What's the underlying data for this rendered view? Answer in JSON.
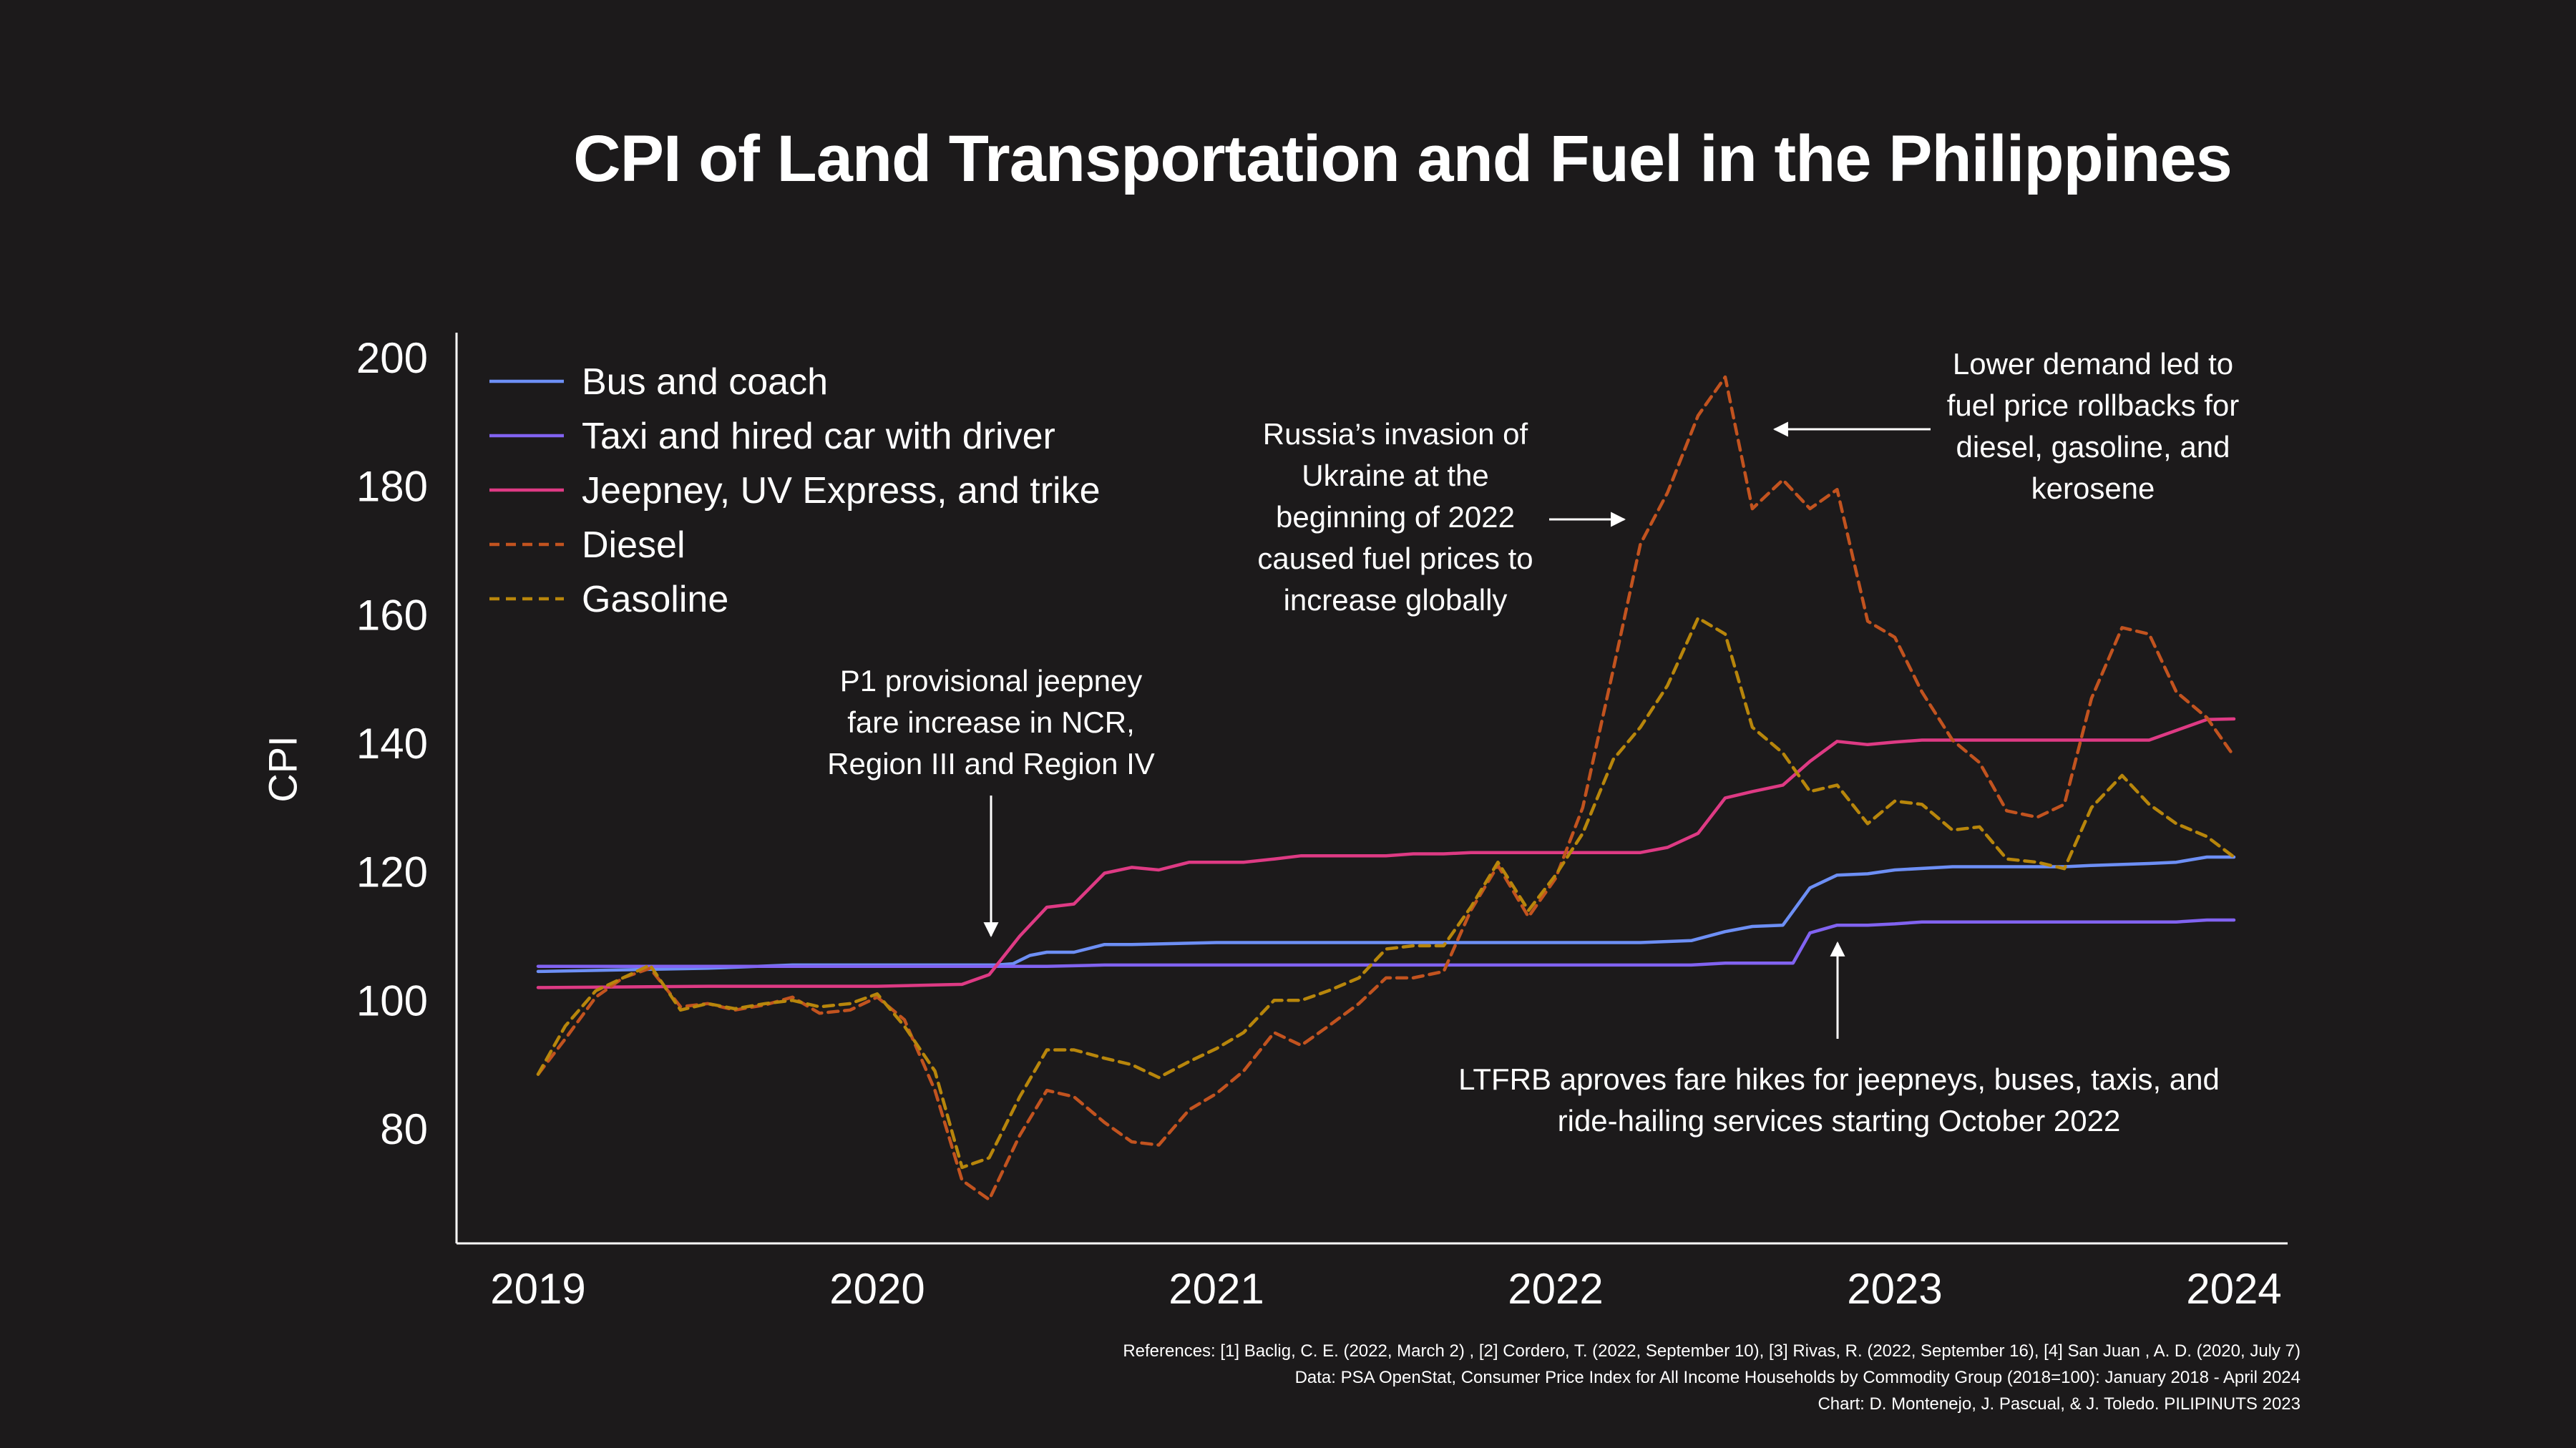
{
  "chart_data": {
    "type": "line",
    "title": "CPI of Land Transportation and Fuel in the Philippines",
    "ylabel": "CPI",
    "xlabel": "",
    "xlim": [
      2019,
      2024
    ],
    "ylim": [
      62,
      204
    ],
    "x_ticks": [
      "2019",
      "2020",
      "2021",
      "2022",
      "2023",
      "2024"
    ],
    "y_ticks": [
      "80",
      "100",
      "120",
      "140",
      "160",
      "180",
      "200"
    ],
    "legend_position": "top-left",
    "series": [
      {
        "name": "Bus and coach",
        "color": "#6d8ff5",
        "dash": false,
        "points": [
          [
            2019.0,
            104.5
          ],
          [
            2019.5,
            105
          ],
          [
            2019.75,
            105.5
          ],
          [
            2020.0,
            105.5
          ],
          [
            2020.35,
            105.5
          ],
          [
            2020.4,
            105.7
          ],
          [
            2020.45,
            107
          ],
          [
            2020.5,
            107.5
          ],
          [
            2020.58,
            107.5
          ],
          [
            2020.67,
            108.7
          ],
          [
            2020.75,
            108.7
          ],
          [
            2021.0,
            109
          ],
          [
            2021.5,
            109
          ],
          [
            2022.0,
            109
          ],
          [
            2022.25,
            109
          ],
          [
            2022.4,
            109.3
          ],
          [
            2022.5,
            110.7
          ],
          [
            2022.58,
            111.5
          ],
          [
            2022.67,
            111.7
          ],
          [
            2022.75,
            117.5
          ],
          [
            2022.83,
            119.5
          ],
          [
            2022.92,
            119.7
          ],
          [
            2023.0,
            120.3
          ],
          [
            2023.17,
            120.8
          ],
          [
            2023.5,
            120.8
          ],
          [
            2023.58,
            121
          ],
          [
            2023.75,
            121.3
          ],
          [
            2023.83,
            121.5
          ],
          [
            2023.92,
            122.3
          ],
          [
            2024.0,
            122.3
          ]
        ]
      },
      {
        "name": "Taxi and hired car with driver",
        "color": "#8163f1",
        "dash": false,
        "points": [
          [
            2019.0,
            105.3
          ],
          [
            2019.5,
            105.3
          ],
          [
            2020.0,
            105.3
          ],
          [
            2020.5,
            105.3
          ],
          [
            2020.67,
            105.5
          ],
          [
            2021.0,
            105.5
          ],
          [
            2022.0,
            105.5
          ],
          [
            2022.4,
            105.5
          ],
          [
            2022.5,
            105.8
          ],
          [
            2022.7,
            105.8
          ],
          [
            2022.75,
            110.5
          ],
          [
            2022.83,
            111.7
          ],
          [
            2022.92,
            111.7
          ],
          [
            2023.0,
            111.9
          ],
          [
            2023.08,
            112.2
          ],
          [
            2023.5,
            112.2
          ],
          [
            2023.83,
            112.2
          ],
          [
            2023.92,
            112.5
          ],
          [
            2024.0,
            112.5
          ]
        ]
      },
      {
        "name": "Jeepney, UV Express, and trike",
        "color": "#de3a84",
        "dash": false,
        "points": [
          [
            2019.0,
            102
          ],
          [
            2019.5,
            102.2
          ],
          [
            2020.0,
            102.2
          ],
          [
            2020.25,
            102.5
          ],
          [
            2020.33,
            104
          ],
          [
            2020.42,
            110
          ],
          [
            2020.5,
            114.5
          ],
          [
            2020.58,
            115
          ],
          [
            2020.67,
            119.8
          ],
          [
            2020.75,
            120.7
          ],
          [
            2020.83,
            120.3
          ],
          [
            2020.92,
            121.5
          ],
          [
            2021.0,
            121.5
          ],
          [
            2021.08,
            121.5
          ],
          [
            2021.17,
            122
          ],
          [
            2021.25,
            122.5
          ],
          [
            2021.5,
            122.5
          ],
          [
            2021.58,
            122.8
          ],
          [
            2021.67,
            122.8
          ],
          [
            2021.75,
            123
          ],
          [
            2022.0,
            123
          ],
          [
            2022.25,
            123
          ],
          [
            2022.33,
            123.8
          ],
          [
            2022.42,
            126
          ],
          [
            2022.5,
            131.5
          ],
          [
            2022.58,
            132.5
          ],
          [
            2022.67,
            133.5
          ],
          [
            2022.75,
            137.2
          ],
          [
            2022.83,
            140.3
          ],
          [
            2022.92,
            139.8
          ],
          [
            2023.0,
            140.2
          ],
          [
            2023.08,
            140.5
          ],
          [
            2023.5,
            140.5
          ],
          [
            2023.67,
            140.5
          ],
          [
            2023.75,
            140.5
          ],
          [
            2023.83,
            142
          ],
          [
            2023.92,
            143.7
          ],
          [
            2024.0,
            143.8
          ]
        ]
      },
      {
        "name": "Diesel",
        "color": "#c2531f",
        "dash": true,
        "points": [
          [
            2019.0,
            88.5
          ],
          [
            2019.08,
            94
          ],
          [
            2019.17,
            100.5
          ],
          [
            2019.25,
            103.5
          ],
          [
            2019.33,
            105
          ],
          [
            2019.42,
            99
          ],
          [
            2019.5,
            99.5
          ],
          [
            2019.58,
            98.5
          ],
          [
            2019.67,
            99.3
          ],
          [
            2019.75,
            100.5
          ],
          [
            2019.83,
            98
          ],
          [
            2019.92,
            98.5
          ],
          [
            2020.0,
            100.5
          ],
          [
            2020.08,
            97
          ],
          [
            2020.17,
            86
          ],
          [
            2020.25,
            72
          ],
          [
            2020.33,
            69
          ],
          [
            2020.42,
            79
          ],
          [
            2020.5,
            86
          ],
          [
            2020.58,
            85
          ],
          [
            2020.67,
            81
          ],
          [
            2020.75,
            78
          ],
          [
            2020.83,
            77.5
          ],
          [
            2020.92,
            83
          ],
          [
            2021.0,
            85.5
          ],
          [
            2021.08,
            89
          ],
          [
            2021.17,
            95
          ],
          [
            2021.25,
            93
          ],
          [
            2021.33,
            96
          ],
          [
            2021.42,
            99.5
          ],
          [
            2021.5,
            103.5
          ],
          [
            2021.58,
            103.5
          ],
          [
            2021.67,
            104.5
          ],
          [
            2021.75,
            114
          ],
          [
            2021.83,
            121
          ],
          [
            2021.92,
            113
          ],
          [
            2022.0,
            119
          ],
          [
            2022.08,
            130
          ],
          [
            2022.17,
            151.5
          ],
          [
            2022.25,
            171
          ],
          [
            2022.33,
            179
          ],
          [
            2022.42,
            191
          ],
          [
            2022.5,
            197
          ],
          [
            2022.58,
            176.5
          ],
          [
            2022.67,
            181
          ],
          [
            2022.75,
            176.5
          ],
          [
            2022.83,
            179.5
          ],
          [
            2022.92,
            159
          ],
          [
            2023.0,
            156.5
          ],
          [
            2023.08,
            148
          ],
          [
            2023.17,
            140.5
          ],
          [
            2023.25,
            137
          ],
          [
            2023.33,
            129.5
          ],
          [
            2023.42,
            128.5
          ],
          [
            2023.5,
            130.5
          ],
          [
            2023.58,
            147
          ],
          [
            2023.67,
            158
          ],
          [
            2023.75,
            157
          ],
          [
            2023.83,
            148
          ],
          [
            2023.92,
            144
          ],
          [
            2024.0,
            138
          ]
        ]
      },
      {
        "name": "Gasoline",
        "color": "#b8860b",
        "dash": true,
        "points": [
          [
            2019.0,
            88.5
          ],
          [
            2019.08,
            96
          ],
          [
            2019.17,
            101.5
          ],
          [
            2019.25,
            103.5
          ],
          [
            2019.33,
            105.5
          ],
          [
            2019.42,
            98.5
          ],
          [
            2019.5,
            99.5
          ],
          [
            2019.58,
            98.7
          ],
          [
            2019.67,
            99.5
          ],
          [
            2019.75,
            100
          ],
          [
            2019.83,
            99
          ],
          [
            2019.92,
            99.5
          ],
          [
            2020.0,
            101
          ],
          [
            2020.08,
            96
          ],
          [
            2020.17,
            89
          ],
          [
            2020.25,
            74
          ],
          [
            2020.33,
            75.5
          ],
          [
            2020.42,
            85
          ],
          [
            2020.5,
            92.3
          ],
          [
            2020.58,
            92.3
          ],
          [
            2020.67,
            91
          ],
          [
            2020.75,
            90
          ],
          [
            2020.83,
            88
          ],
          [
            2020.92,
            90.5
          ],
          [
            2021.0,
            92.5
          ],
          [
            2021.08,
            95
          ],
          [
            2021.17,
            100
          ],
          [
            2021.25,
            100
          ],
          [
            2021.33,
            101.5
          ],
          [
            2021.42,
            103.5
          ],
          [
            2021.5,
            108
          ],
          [
            2021.58,
            108.5
          ],
          [
            2021.67,
            108.5
          ],
          [
            2021.75,
            114.5
          ],
          [
            2021.83,
            121.5
          ],
          [
            2021.92,
            114
          ],
          [
            2022.0,
            119.5
          ],
          [
            2022.08,
            126
          ],
          [
            2022.17,
            137.5
          ],
          [
            2022.25,
            142.5
          ],
          [
            2022.33,
            149
          ],
          [
            2022.42,
            159.5
          ],
          [
            2022.5,
            157
          ],
          [
            2022.58,
            142.5
          ],
          [
            2022.67,
            138.5
          ],
          [
            2022.75,
            132.5
          ],
          [
            2022.83,
            133.5
          ],
          [
            2022.92,
            127.5
          ],
          [
            2023.0,
            131
          ],
          [
            2023.08,
            130.5
          ],
          [
            2023.17,
            126.5
          ],
          [
            2023.25,
            127
          ],
          [
            2023.33,
            122
          ],
          [
            2023.42,
            121.5
          ],
          [
            2023.5,
            120.5
          ],
          [
            2023.58,
            130
          ],
          [
            2023.67,
            135
          ],
          [
            2023.75,
            130.5
          ],
          [
            2023.83,
            127.5
          ],
          [
            2023.92,
            125.5
          ],
          [
            2024.0,
            122.3
          ]
        ]
      }
    ],
    "annotations": [
      {
        "text": "P1 provisional jeepney\nfare increase in NCR,\nRegion III and Region IV",
        "arrow": "down",
        "x": 2020.33,
        "y": 104
      },
      {
        "text": "Russia’s invasion of\nUkraine at the\nbeginning of 2022\ncaused fuel prices to\nincrease globally",
        "arrow": "right",
        "x": 2022.2,
        "y": 173
      },
      {
        "text": "Lower demand led to\nfuel price rollbacks for\ndiesel, gasoline, and\nkerosene",
        "arrow": "left",
        "x": 2022.65,
        "y": 188
      },
      {
        "text": "LTFRB aproves fare hikes for jeepneys, buses, taxis, and\nride-hailing services starting October 2022",
        "arrow": "up",
        "x": 2022.83,
        "y": 110
      }
    ]
  },
  "references": {
    "line1": "References: [1] Baclig, C. E. (2022, March 2) ,  [2] Cordero, T. (2022, September 10),  [3] Rivas, R. (2022, September 16),  [4] San Juan , A. D. (2020, July 7)",
    "line2": "Data: PSA OpenStat, Consumer Price Index for All Income Households by Commodity Group (2018=100): January 2018 - April 2024",
    "line3": "Chart: D. Montenejo, J. Pascual, & J. Toledo. PILIPINUTS 2023"
  }
}
